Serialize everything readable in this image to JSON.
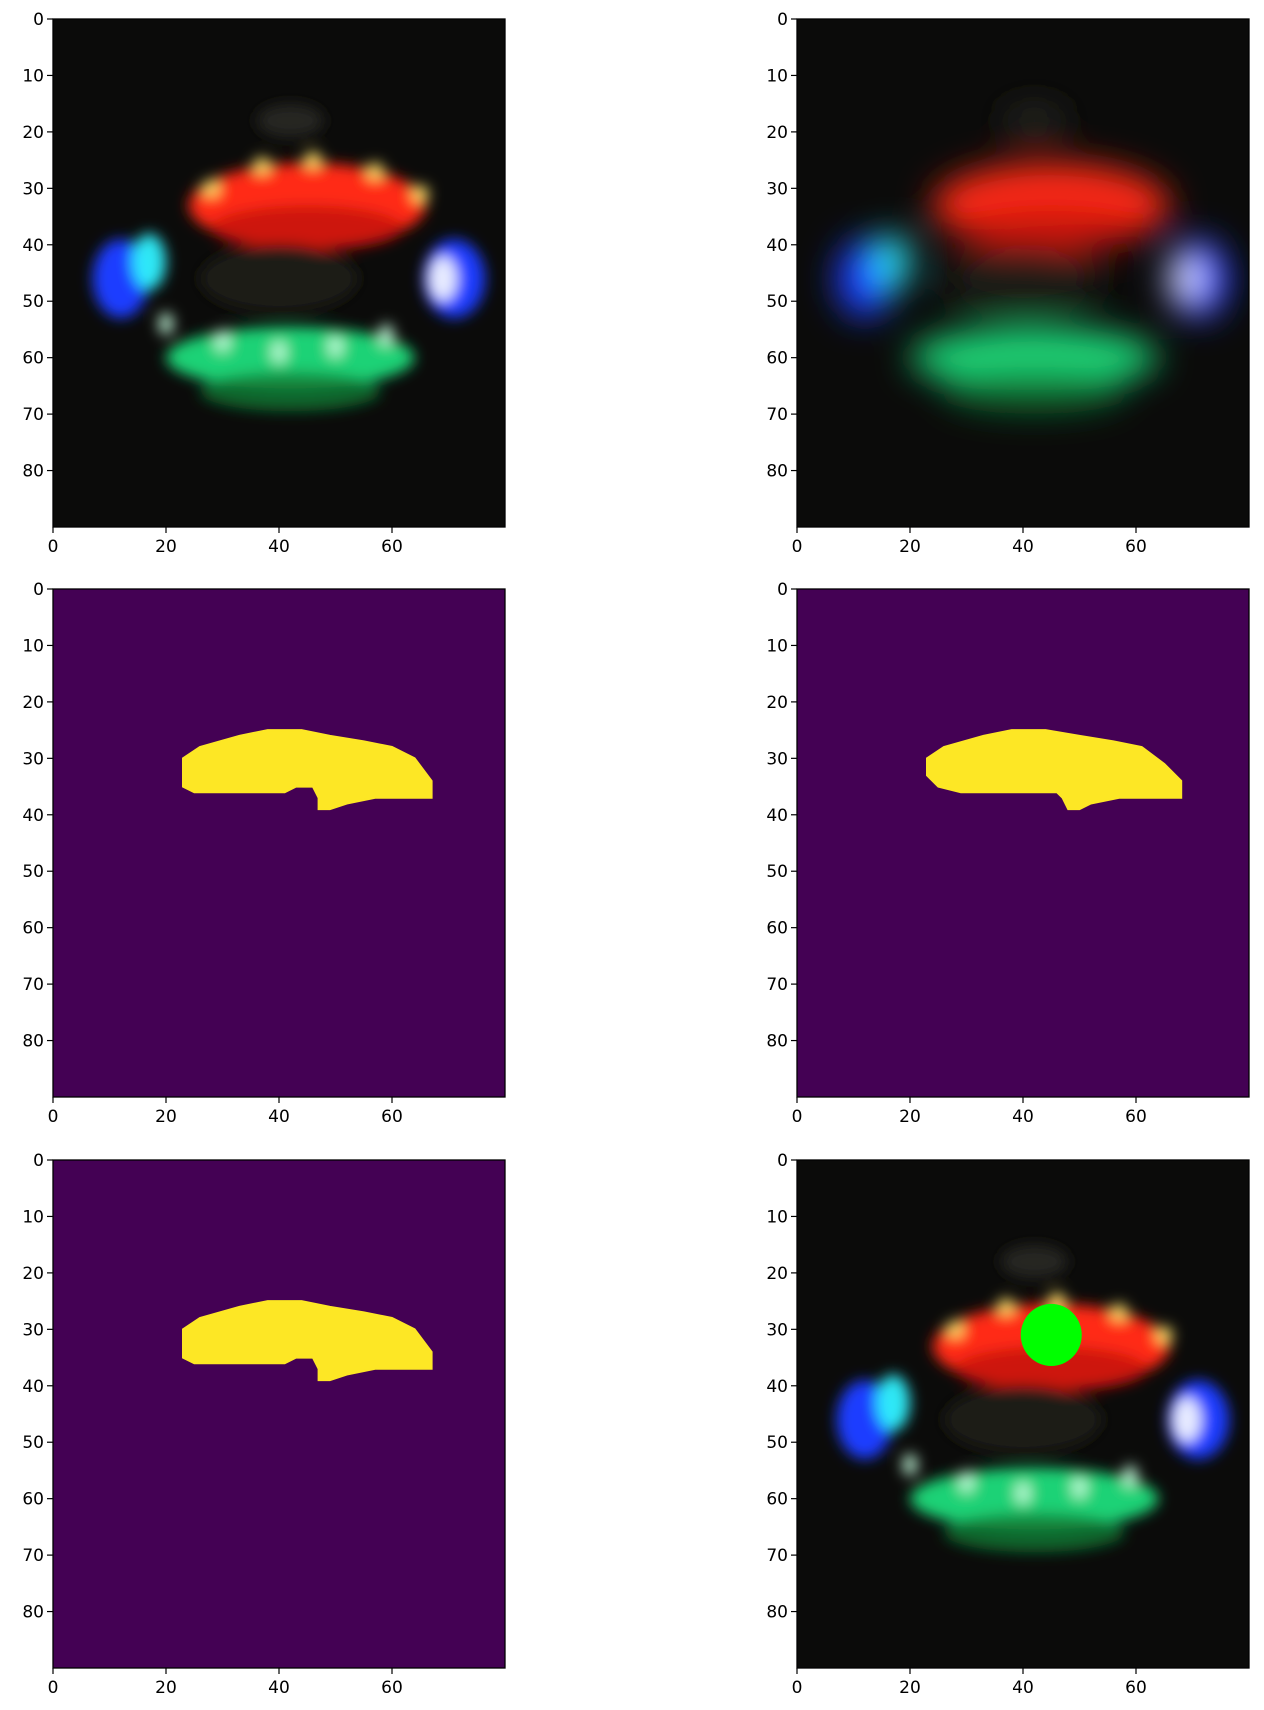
{
  "figure": {
    "layout": "3 rows x 2 columns of image panels",
    "grid": false
  },
  "colors": {
    "mask_background": "#440154",
    "mask_foreground": "#fde725",
    "detected_blob": "#00ff00",
    "photo_background": "#0b0b0a",
    "led_red": "#ff2a12",
    "led_green": "#1fd276",
    "led_blue": "#1c3dff",
    "led_cyan": "#2ff2ff",
    "led_white": "#ffffff",
    "led_yellow": "#ffe16a"
  },
  "chart_data": [
    {
      "type": "image",
      "panel": "row1-left",
      "content": "photo of LED ring (sharp)",
      "xlim": [
        0,
        80
      ],
      "ylim": [
        90,
        0
      ],
      "x_ticks": [
        "0",
        "20",
        "40",
        "60"
      ],
      "y_ticks": [
        "0",
        "10",
        "20",
        "30",
        "40",
        "50",
        "60",
        "70",
        "80"
      ]
    },
    {
      "type": "image",
      "panel": "row1-right",
      "content": "photo of LED ring (blurred)",
      "xlim": [
        0,
        80
      ],
      "ylim": [
        90,
        0
      ],
      "x_ticks": [
        "0",
        "20",
        "40",
        "60"
      ],
      "y_ticks": [
        "0",
        "10",
        "20",
        "30",
        "40",
        "50",
        "60",
        "70",
        "80"
      ]
    },
    {
      "type": "heatmap",
      "panel": "row2-left",
      "content": "binary mask",
      "xlim": [
        0,
        80
      ],
      "ylim": [
        90,
        0
      ],
      "x_ticks": [
        "0",
        "20",
        "40",
        "60"
      ],
      "y_ticks": [
        "0",
        "10",
        "20",
        "30",
        "40",
        "50",
        "60",
        "70",
        "80"
      ],
      "mask_region": [
        [
          23,
          30
        ],
        [
          26,
          28
        ],
        [
          33,
          26
        ],
        [
          38,
          25
        ],
        [
          44,
          25
        ],
        [
          49,
          26
        ],
        [
          55,
          27
        ],
        [
          60,
          28
        ],
        [
          64,
          30
        ],
        [
          67,
          34
        ],
        [
          67,
          37
        ],
        [
          57,
          37
        ],
        [
          52,
          38
        ],
        [
          49,
          39
        ],
        [
          47,
          39
        ],
        [
          47,
          37
        ],
        [
          46,
          35
        ],
        [
          43,
          35
        ],
        [
          41,
          36
        ],
        [
          35,
          36
        ],
        [
          29,
          36
        ],
        [
          25,
          36
        ],
        [
          23,
          35
        ]
      ]
    },
    {
      "type": "heatmap",
      "panel": "row2-right",
      "content": "binary mask",
      "xlim": [
        0,
        80
      ],
      "ylim": [
        90,
        0
      ],
      "x_ticks": [
        "0",
        "20",
        "40",
        "60"
      ],
      "y_ticks": [
        "0",
        "10",
        "20",
        "30",
        "40",
        "50",
        "60",
        "70",
        "80"
      ],
      "mask_region": [
        [
          23,
          30
        ],
        [
          26,
          28
        ],
        [
          33,
          26
        ],
        [
          38,
          25
        ],
        [
          44,
          25
        ],
        [
          50,
          26
        ],
        [
          56,
          27
        ],
        [
          61,
          28
        ],
        [
          65,
          31
        ],
        [
          68,
          34
        ],
        [
          68,
          37
        ],
        [
          57,
          37
        ],
        [
          52,
          38
        ],
        [
          50,
          39
        ],
        [
          48,
          39
        ],
        [
          47,
          37
        ],
        [
          46,
          36
        ],
        [
          43,
          36
        ],
        [
          41,
          36
        ],
        [
          35,
          36
        ],
        [
          29,
          36
        ],
        [
          25,
          35
        ],
        [
          23,
          33
        ]
      ]
    },
    {
      "type": "heatmap",
      "panel": "row3-left",
      "content": "binary mask",
      "xlim": [
        0,
        80
      ],
      "ylim": [
        90,
        0
      ],
      "x_ticks": [
        "0",
        "20",
        "40",
        "60"
      ],
      "y_ticks": [
        "0",
        "10",
        "20",
        "30",
        "40",
        "50",
        "60",
        "70",
        "80"
      ],
      "mask_region": [
        [
          23,
          30
        ],
        [
          26,
          28
        ],
        [
          33,
          26
        ],
        [
          38,
          25
        ],
        [
          44,
          25
        ],
        [
          49,
          26
        ],
        [
          55,
          27
        ],
        [
          60,
          28
        ],
        [
          64,
          30
        ],
        [
          67,
          34
        ],
        [
          67,
          37
        ],
        [
          57,
          37
        ],
        [
          52,
          38
        ],
        [
          49,
          39
        ],
        [
          47,
          39
        ],
        [
          47,
          37
        ],
        [
          46,
          35
        ],
        [
          43,
          35
        ],
        [
          41,
          36
        ],
        [
          35,
          36
        ],
        [
          29,
          36
        ],
        [
          25,
          36
        ],
        [
          23,
          35
        ]
      ]
    },
    {
      "type": "image",
      "panel": "row3-right",
      "content": "photo of LED ring with detected blob overlay",
      "xlim": [
        0,
        80
      ],
      "ylim": [
        90,
        0
      ],
      "x_ticks": [
        "0",
        "20",
        "40",
        "60"
      ],
      "y_ticks": [
        "0",
        "10",
        "20",
        "30",
        "40",
        "50",
        "60",
        "70",
        "80"
      ],
      "blob_center": [
        45,
        31
      ],
      "blob_radius": [
        6,
        5.5
      ]
    }
  ]
}
